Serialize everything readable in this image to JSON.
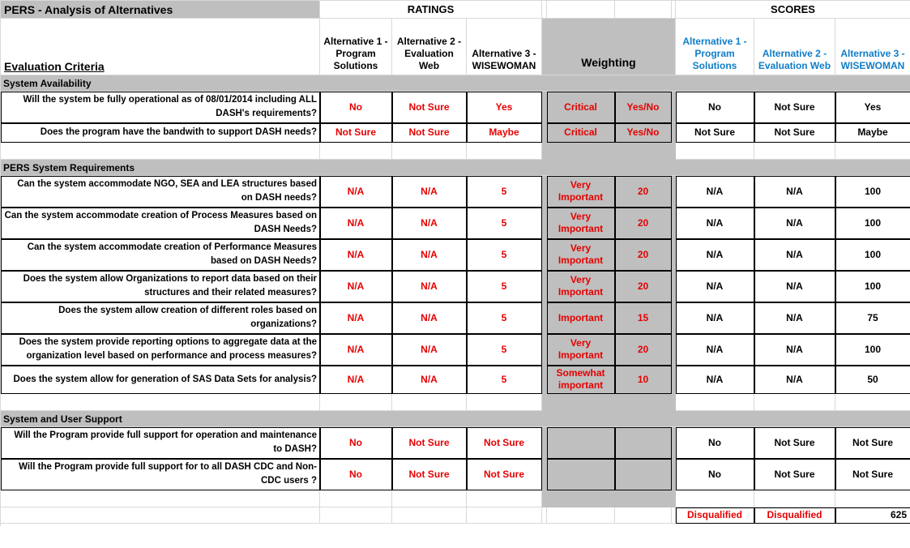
{
  "title": "PERS - Analysis of Alternatives",
  "group_headers": {
    "ratings": "RATINGS",
    "scores": "SCORES"
  },
  "columns": {
    "criteria_header": "Evaluation Criteria",
    "weighting_header": "Weighting",
    "ratings_alternatives": [
      "Alternative 1 - Program Solutions",
      "Alternative 2 - Evaluation Web",
      "Alternative 3 - WISEWOMAN"
    ],
    "scores_alternatives": [
      "Alternative 1 - Program Solutions",
      "Alternative 2 - Evaluation Web",
      "Alternative 3 - WISEWOMAN"
    ]
  },
  "colors": {
    "section_gray": "#bfbfbf",
    "rating_red": "#e60000",
    "score_blue": "#0f7dc8",
    "gridline": "#d9d9d9"
  },
  "rows": [
    {
      "type": "section",
      "label": "System Availability"
    },
    {
      "type": "q",
      "label": "Will the system be fully operational as of 08/01/2014 including ALL DASH's requirements?",
      "ratings": [
        "No",
        "Not Sure",
        "Yes"
      ],
      "weight": [
        "Critical",
        "Yes/No"
      ],
      "scores": [
        "No",
        "Not Sure",
        "Yes"
      ]
    },
    {
      "type": "q",
      "label": "Does the program have the bandwith to support DASH needs?",
      "ratings": [
        "Not Sure",
        "Not Sure",
        "Maybe"
      ],
      "weight": [
        "Critical",
        "Yes/No"
      ],
      "scores": [
        "Not Sure",
        "Not Sure",
        "Maybe"
      ]
    },
    {
      "type": "empty"
    },
    {
      "type": "section",
      "label": "PERS System Requirements"
    },
    {
      "type": "q",
      "label": "Can the system accommodate NGO, SEA and LEA structures based on DASH needs?",
      "ratings": [
        "N/A",
        "N/A",
        "5"
      ],
      "weight": [
        "Very Important",
        "20"
      ],
      "scores": [
        "N/A",
        "N/A",
        "100"
      ]
    },
    {
      "type": "q",
      "label": "Can the system accommodate creation of Process Measures based on DASH Needs?",
      "ratings": [
        "N/A",
        "N/A",
        "5"
      ],
      "weight": [
        "Very Important",
        "20"
      ],
      "scores": [
        "N/A",
        "N/A",
        "100"
      ]
    },
    {
      "type": "q",
      "label": "Can the system accommodate creation of Performance Measures based on DASH Needs?",
      "ratings": [
        "N/A",
        "N/A",
        "5"
      ],
      "weight": [
        "Very Important",
        "20"
      ],
      "scores": [
        "N/A",
        "N/A",
        "100"
      ]
    },
    {
      "type": "q",
      "label": "Does the system allow Organizations to report data based on their structures and their related measures?",
      "ratings": [
        "N/A",
        "N/A",
        "5"
      ],
      "weight": [
        "Very Important",
        "20"
      ],
      "scores": [
        "N/A",
        "N/A",
        "100"
      ]
    },
    {
      "type": "q",
      "label": "Does the system allow creation of different roles based on organizations?",
      "ratings": [
        "N/A",
        "N/A",
        "5"
      ],
      "weight": [
        "Important",
        "15"
      ],
      "scores": [
        "N/A",
        "N/A",
        "75"
      ]
    },
    {
      "type": "q",
      "label": "Does the system provide reporting options to aggregate data at the organization level based on performance and process measures?",
      "ratings": [
        "N/A",
        "N/A",
        "5"
      ],
      "weight": [
        "Very Important",
        "20"
      ],
      "scores": [
        "N/A",
        "N/A",
        "100"
      ]
    },
    {
      "type": "q",
      "label": "Does the system allow for generation of SAS Data Sets for analysis?",
      "ratings": [
        "N/A",
        "N/A",
        "5"
      ],
      "weight": [
        "Somewhat important",
        "10"
      ],
      "scores": [
        "N/A",
        "N/A",
        "50"
      ]
    },
    {
      "type": "empty"
    },
    {
      "type": "section",
      "label": "System and User Support"
    },
    {
      "type": "q",
      "label": "Will the Program provide full support for operation and maintenance to DASH?",
      "ratings": [
        "No",
        "Not Sure",
        "Not Sure"
      ],
      "weight": [
        "",
        ""
      ],
      "scores": [
        "No",
        "Not Sure",
        "Not Sure"
      ]
    },
    {
      "type": "q",
      "label": "Will the Program provide full support for to all DASH CDC and Non-CDC users ?",
      "ratings": [
        "No",
        "Not Sure",
        "Not Sure"
      ],
      "weight": [
        "",
        ""
      ],
      "scores": [
        "No",
        "Not Sure",
        "Not Sure"
      ]
    },
    {
      "type": "empty"
    },
    {
      "type": "totals",
      "scores": [
        "Disqualified",
        "Disqualified",
        "625"
      ]
    },
    {
      "type": "filler"
    }
  ]
}
